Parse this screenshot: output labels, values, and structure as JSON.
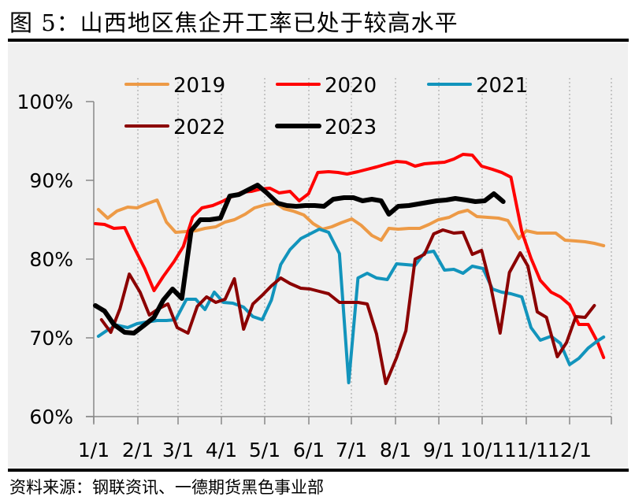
{
  "title": "图 5：山西地区焦企开工率已处于较高水平",
  "source": "资料来源：钢联资讯、一德期货黑色事业部",
  "chart_data": {
    "type": "line",
    "title": "山西地区焦企开工率已处于较高水平",
    "xlabel": "",
    "ylabel": "",
    "ylim": [
      0.6,
      1.0
    ],
    "y_ticks": [
      "60%",
      "70%",
      "80%",
      "90%",
      "100%"
    ],
    "x_ticks": [
      "1/1",
      "2/1",
      "3/1",
      "4/1",
      "5/1",
      "6/1",
      "7/1",
      "8/1",
      "9/1",
      "10/1",
      "11/1",
      "12/1"
    ],
    "grid": "vertical dotted at month starts",
    "legend_position": "top, two rows",
    "x_unit": "day of year (approx.)",
    "series": [
      {
        "name": "2019",
        "color": "#ED9A46",
        "width": 4,
        "points": [
          [
            3,
            86.3
          ],
          [
            9,
            85.2
          ],
          [
            15,
            86.1
          ],
          [
            22,
            86.6
          ],
          [
            28,
            86.5
          ],
          [
            34,
            87.0
          ],
          [
            41,
            87.5
          ],
          [
            47,
            84.7
          ],
          [
            53,
            83.4
          ],
          [
            60,
            83.5
          ],
          [
            66,
            83.6
          ],
          [
            72,
            83.9
          ],
          [
            79,
            84.1
          ],
          [
            85,
            84.7
          ],
          [
            91,
            85.0
          ],
          [
            98,
            85.7
          ],
          [
            104,
            86.5
          ],
          [
            111,
            86.9
          ],
          [
            118,
            87.1
          ],
          [
            123,
            86.4
          ],
          [
            129,
            86.1
          ],
          [
            136,
            85.6
          ],
          [
            142,
            84.5
          ],
          [
            148,
            83.8
          ],
          [
            154,
            84.1
          ],
          [
            160,
            84.6
          ],
          [
            167,
            85.1
          ],
          [
            173,
            84.3
          ],
          [
            180,
            83.0
          ],
          [
            186,
            82.4
          ],
          [
            191,
            83.9
          ],
          [
            197,
            83.8
          ],
          [
            204,
            83.9
          ],
          [
            211,
            83.9
          ],
          [
            217,
            84.4
          ],
          [
            223,
            85.0
          ],
          [
            230,
            85.3
          ],
          [
            236,
            85.9
          ],
          [
            242,
            86.2
          ],
          [
            248,
            85.4
          ],
          [
            255,
            85.3
          ],
          [
            262,
            85.2
          ],
          [
            268,
            84.9
          ],
          [
            275,
            82.6
          ],
          [
            280,
            83.6
          ],
          [
            287,
            83.3
          ],
          [
            293,
            83.3
          ],
          [
            299,
            83.3
          ],
          [
            305,
            82.4
          ],
          [
            312,
            82.3
          ],
          [
            318,
            82.2
          ],
          [
            324,
            82.0
          ],
          [
            330,
            81.7
          ]
        ]
      },
      {
        "name": "2020",
        "color": "#FF0000",
        "width": 4,
        "points": [
          [
            1,
            84.5
          ],
          [
            7,
            84.4
          ],
          [
            13,
            83.9
          ],
          [
            20,
            84.0
          ],
          [
            26,
            81.5
          ],
          [
            33,
            78.8
          ],
          [
            39,
            76.0
          ],
          [
            45,
            77.8
          ],
          [
            52,
            79.7
          ],
          [
            58,
            81.6
          ],
          [
            64,
            85.3
          ],
          [
            70,
            86.5
          ],
          [
            77,
            86.8
          ],
          [
            83,
            87.3
          ],
          [
            89,
            87.9
          ],
          [
            96,
            88.5
          ],
          [
            102,
            88.6
          ],
          [
            108,
            88.9
          ],
          [
            114,
            89.0
          ],
          [
            120,
            88.4
          ],
          [
            127,
            88.6
          ],
          [
            133,
            87.4
          ],
          [
            139,
            88.3
          ],
          [
            145,
            91.0
          ],
          [
            152,
            91.1
          ],
          [
            158,
            91.0
          ],
          [
            164,
            90.8
          ],
          [
            171,
            91.1
          ],
          [
            177,
            91.4
          ],
          [
            183,
            91.7
          ],
          [
            190,
            92.1
          ],
          [
            196,
            92.4
          ],
          [
            202,
            92.3
          ],
          [
            208,
            91.8
          ],
          [
            214,
            92.1
          ],
          [
            220,
            92.2
          ],
          [
            227,
            92.3
          ],
          [
            233,
            92.7
          ],
          [
            239,
            93.3
          ],
          [
            245,
            93.2
          ],
          [
            251,
            91.8
          ],
          [
            258,
            91.4
          ],
          [
            264,
            91.0
          ],
          [
            270,
            90.4
          ],
          [
            277,
            83.5
          ],
          [
            283,
            80.1
          ],
          [
            289,
            77.3
          ],
          [
            296,
            75.8
          ],
          [
            302,
            75.2
          ],
          [
            308,
            74.2
          ],
          [
            314,
            71.7
          ],
          [
            320,
            71.7
          ],
          [
            326,
            69.5
          ],
          [
            330,
            67.5
          ]
        ]
      },
      {
        "name": "2021",
        "color": "#1294BC",
        "width": 4,
        "points": [
          [
            3,
            70.2
          ],
          [
            9,
            71.0
          ],
          [
            15,
            71.6
          ],
          [
            22,
            71.3
          ],
          [
            28,
            71.8
          ],
          [
            34,
            72.0
          ],
          [
            41,
            72.2
          ],
          [
            47,
            72.2
          ],
          [
            53,
            72.3
          ],
          [
            60,
            74.9
          ],
          [
            66,
            74.9
          ],
          [
            72,
            73.6
          ],
          [
            78,
            75.8
          ],
          [
            84,
            74.5
          ],
          [
            90,
            74.4
          ],
          [
            97,
            73.9
          ],
          [
            103,
            72.7
          ],
          [
            109,
            72.3
          ],
          [
            115,
            74.8
          ],
          [
            121,
            79.3
          ],
          [
            127,
            81.2
          ],
          [
            134,
            82.6
          ],
          [
            140,
            83.2
          ],
          [
            146,
            83.8
          ],
          [
            152,
            83.4
          ],
          [
            159,
            80.7
          ],
          [
            165,
            64.3
          ],
          [
            171,
            77.6
          ],
          [
            177,
            78.2
          ],
          [
            183,
            77.6
          ],
          [
            190,
            77.4
          ],
          [
            196,
            79.4
          ],
          [
            202,
            79.3
          ],
          [
            208,
            79.2
          ],
          [
            214,
            80.8
          ],
          [
            220,
            81.0
          ],
          [
            227,
            78.6
          ],
          [
            233,
            78.7
          ],
          [
            239,
            78.2
          ],
          [
            245,
            79.1
          ],
          [
            252,
            78.8
          ],
          [
            258,
            76.2
          ],
          [
            264,
            75.8
          ],
          [
            270,
            75.6
          ],
          [
            277,
            75.2
          ],
          [
            283,
            71.3
          ],
          [
            289,
            69.7
          ],
          [
            296,
            70.2
          ],
          [
            302,
            69.3
          ],
          [
            308,
            66.6
          ],
          [
            314,
            67.4
          ],
          [
            320,
            68.7
          ],
          [
            326,
            69.6
          ],
          [
            330,
            70.1
          ]
        ]
      },
      {
        "name": "2022",
        "color": "#8B0000",
        "width": 4,
        "points": [
          [
            5,
            72.3
          ],
          [
            11,
            70.7
          ],
          [
            17,
            73.7
          ],
          [
            23,
            78.1
          ],
          [
            30,
            75.8
          ],
          [
            36,
            72.9
          ],
          [
            42,
            73.7
          ],
          [
            48,
            74.3
          ],
          [
            54,
            71.3
          ],
          [
            61,
            70.6
          ],
          [
            67,
            74.0
          ],
          [
            73,
            75.2
          ],
          [
            79,
            74.5
          ],
          [
            85,
            74.9
          ],
          [
            91,
            77.5
          ],
          [
            97,
            71.1
          ],
          [
            103,
            74.3
          ],
          [
            109,
            75.4
          ],
          [
            115,
            76.6
          ],
          [
            121,
            77.6
          ],
          [
            127,
            76.9
          ],
          [
            134,
            76.3
          ],
          [
            140,
            76.2
          ],
          [
            146,
            75.9
          ],
          [
            152,
            75.6
          ],
          [
            159,
            74.5
          ],
          [
            165,
            74.5
          ],
          [
            171,
            74.5
          ],
          [
            177,
            74.3
          ],
          [
            183,
            70.5
          ],
          [
            189,
            64.2
          ],
          [
            196,
            67.5
          ],
          [
            202,
            70.9
          ],
          [
            208,
            80.0
          ],
          [
            214,
            80.6
          ],
          [
            220,
            83.2
          ],
          [
            226,
            83.7
          ],
          [
            233,
            83.3
          ],
          [
            239,
            83.4
          ],
          [
            245,
            80.6
          ],
          [
            251,
            81.1
          ],
          [
            257,
            76.5
          ],
          [
            263,
            70.6
          ],
          [
            269,
            78.3
          ],
          [
            276,
            80.8
          ],
          [
            281,
            79.1
          ],
          [
            287,
            73.3
          ],
          [
            293,
            72.6
          ],
          [
            300,
            67.6
          ],
          [
            306,
            69.4
          ],
          [
            312,
            72.7
          ],
          [
            318,
            72.6
          ],
          [
            324,
            74.1
          ]
        ]
      },
      {
        "name": "2023",
        "color": "#000000",
        "width": 6,
        "points": [
          [
            1,
            74.1
          ],
          [
            7,
            73.4
          ],
          [
            13,
            71.7
          ],
          [
            20,
            70.7
          ],
          [
            26,
            70.6
          ],
          [
            32,
            71.5
          ],
          [
            39,
            72.6
          ],
          [
            45,
            74.8
          ],
          [
            51,
            76.2
          ],
          [
            57,
            75.0
          ],
          [
            63,
            83.6
          ],
          [
            69,
            85.0
          ],
          [
            75,
            85.0
          ],
          [
            82,
            85.2
          ],
          [
            88,
            88.0
          ],
          [
            94,
            88.2
          ],
          [
            100,
            88.8
          ],
          [
            106,
            89.4
          ],
          [
            112,
            88.4
          ],
          [
            119,
            87.1
          ],
          [
            125,
            86.8
          ],
          [
            131,
            86.7
          ],
          [
            137,
            86.8
          ],
          [
            143,
            86.8
          ],
          [
            149,
            86.7
          ],
          [
            155,
            87.6
          ],
          [
            162,
            87.8
          ],
          [
            168,
            87.8
          ],
          [
            174,
            87.4
          ],
          [
            180,
            87.6
          ],
          [
            186,
            87.4
          ],
          [
            191,
            85.7
          ],
          [
            197,
            86.7
          ],
          [
            204,
            86.8
          ],
          [
            210,
            87.0
          ],
          [
            216,
            87.2
          ],
          [
            222,
            87.4
          ],
          [
            228,
            87.5
          ],
          [
            234,
            87.7
          ],
          [
            241,
            87.5
          ],
          [
            247,
            87.3
          ],
          [
            253,
            87.4
          ],
          [
            259,
            88.3
          ],
          [
            265,
            87.3
          ]
        ]
      }
    ]
  },
  "legend": {
    "row1": [
      {
        "label": "2019",
        "color": "#ED9A46"
      },
      {
        "label": "2020",
        "color": "#FF0000"
      },
      {
        "label": "2021",
        "color": "#1294BC"
      }
    ],
    "row2": [
      {
        "label": "2022",
        "color": "#8B0000"
      },
      {
        "label": "2023",
        "color": "#000000"
      }
    ]
  }
}
